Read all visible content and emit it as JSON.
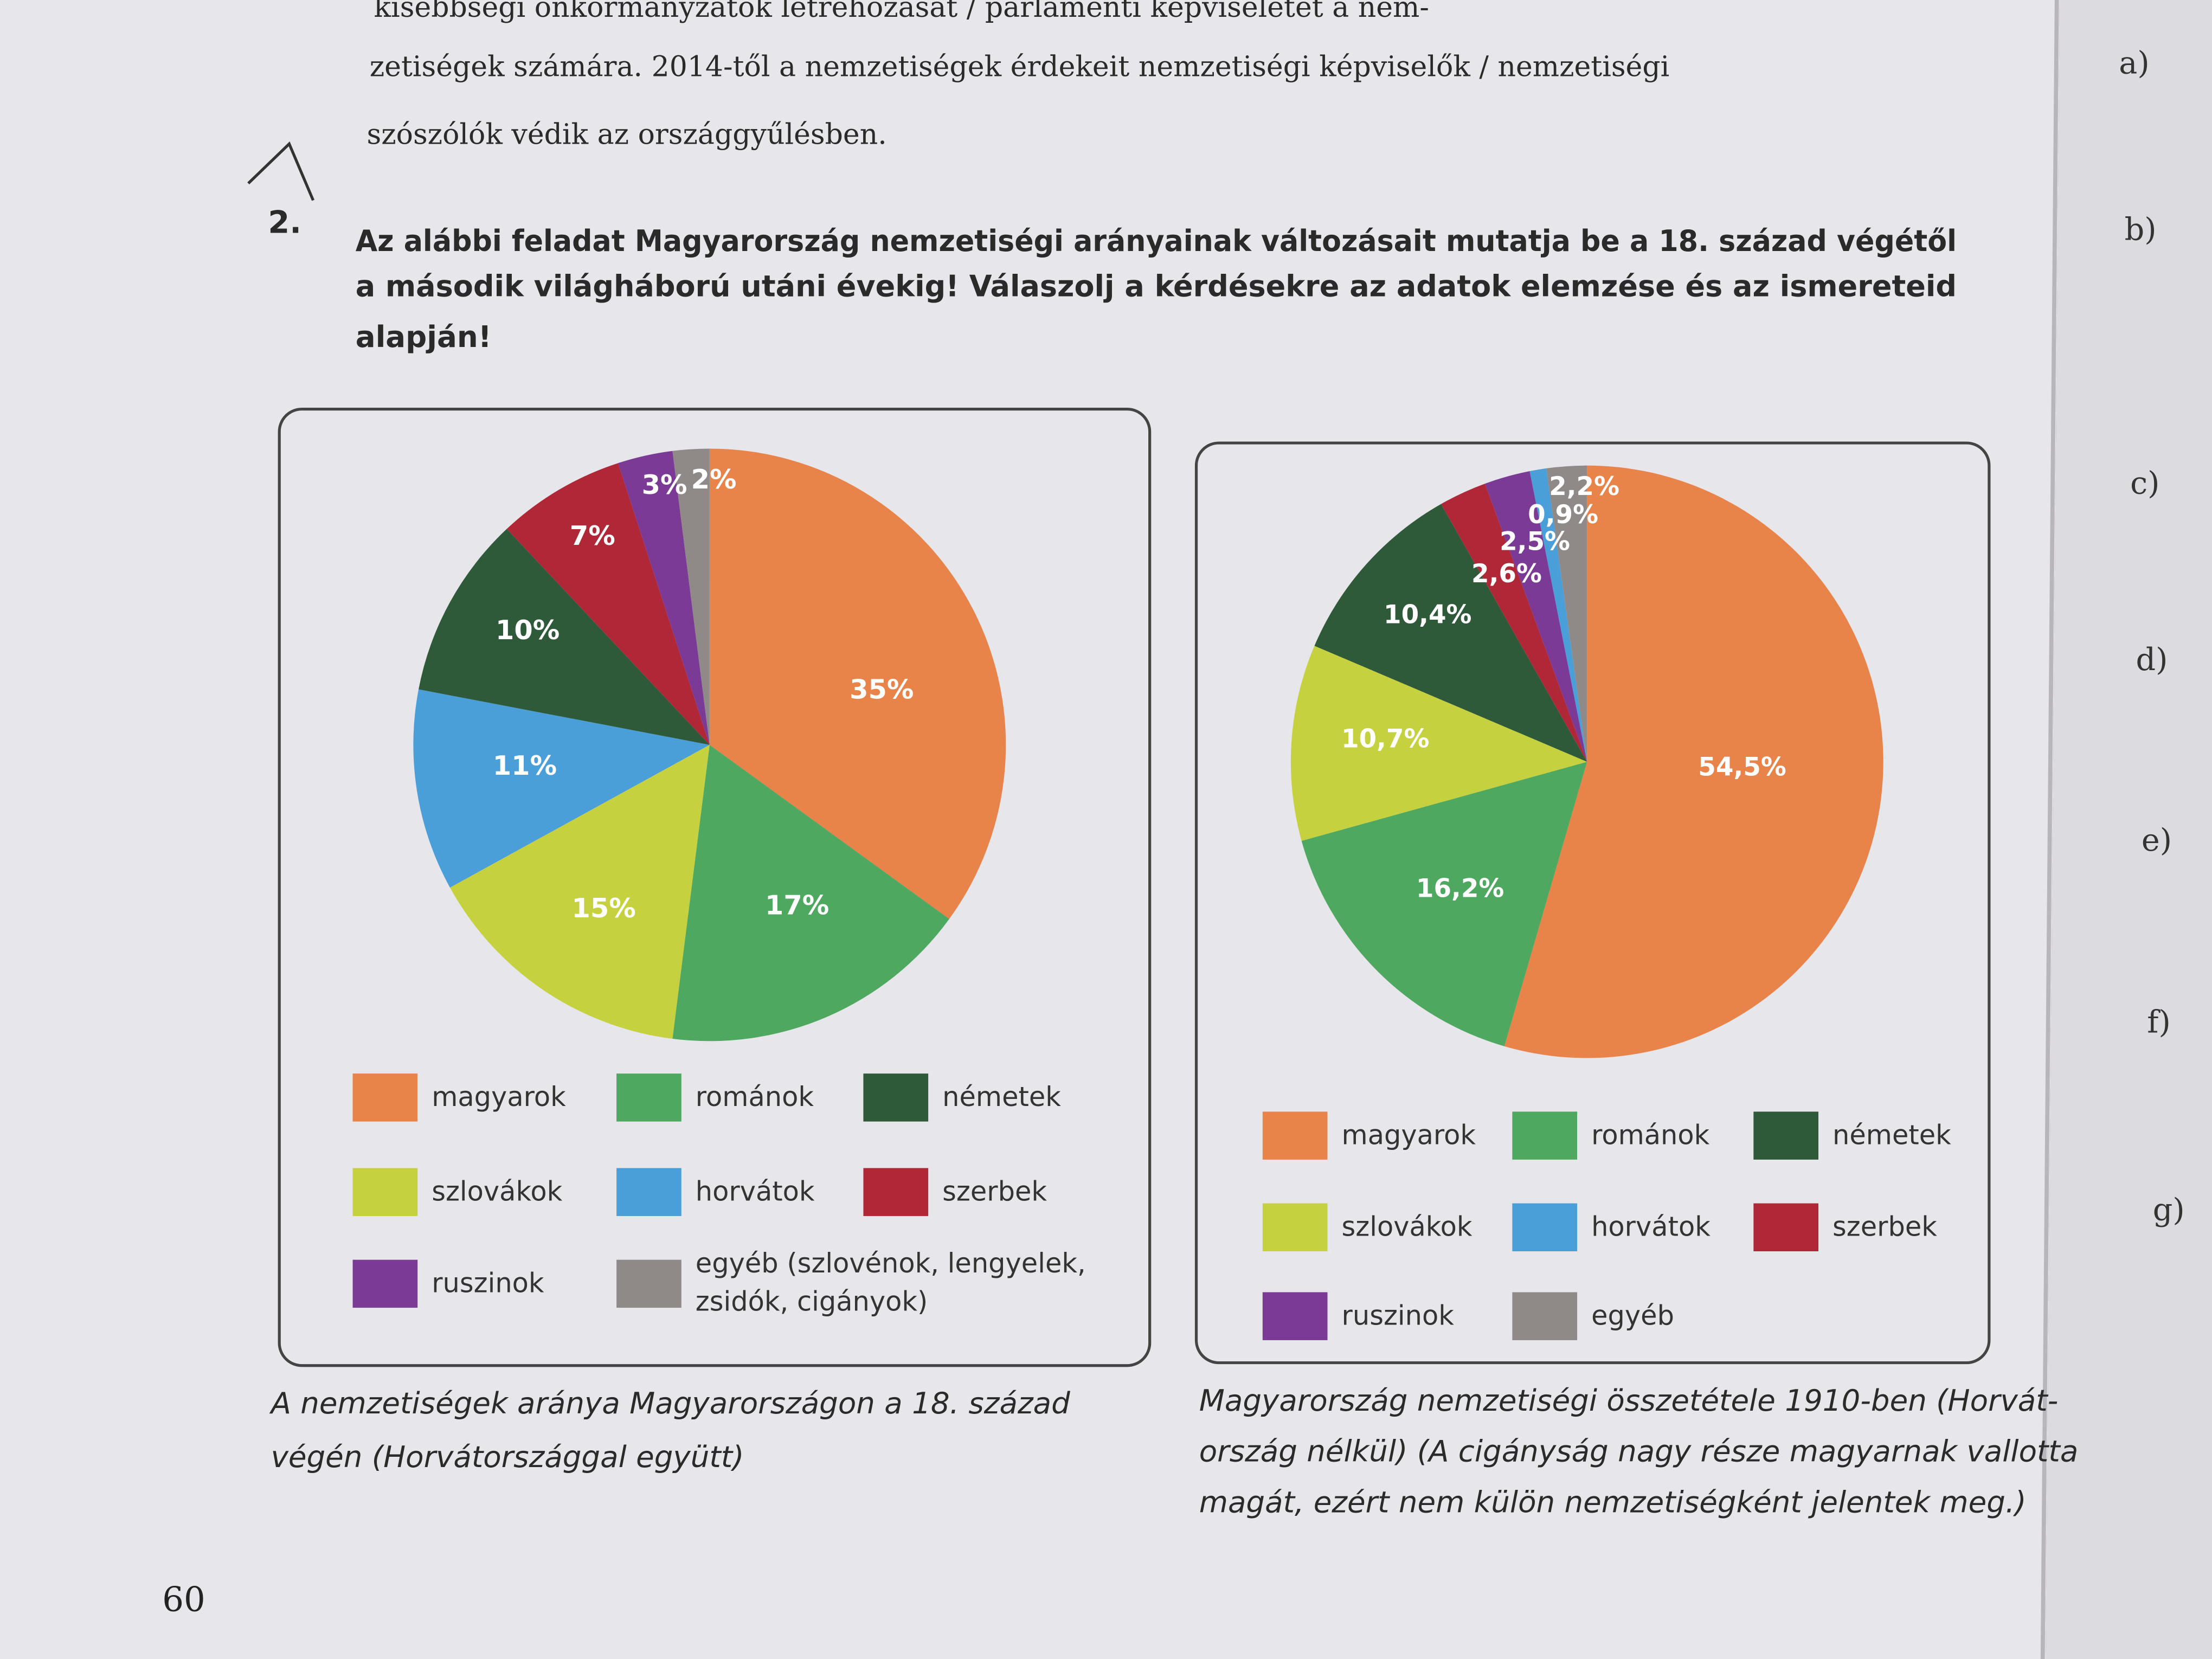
{
  "page": {
    "intro_lines": [
      "kisebbségi önkormányzatok létrehozását / parlamenti képviseletet a nem-",
      "zetiségek számára. 2014-től a nemzetiségek érdekeit nemzetiségi képviselők / nemzetiségi",
      "szószólók védik az országgyűlésben."
    ],
    "task_number": "2.",
    "task_lines": [
      "Az alábbi feladat Magyarország nemzetiségi arányainak változásait mutatja be a 18. század végétől",
      "a második világháború utáni évekig! Válaszolj a kérdésekre az adatok elemzése és az ismereteid",
      "alapján!"
    ],
    "margin_items": [
      "a)",
      "b)",
      "c)",
      "d)",
      "e)",
      "f)",
      "g)"
    ],
    "page_number": "60"
  },
  "chart_data": [
    {
      "type": "pie",
      "categories": [
        "magyarok",
        "románok",
        "szlovákok",
        "horvátok",
        "németek",
        "szerbek",
        "ruszinok",
        "egyéb (szlovénok, lengyelek, zsidók, cigányok)"
      ],
      "values": [
        35,
        17,
        15,
        11,
        10,
        7,
        3,
        2
      ],
      "value_labels": [
        "35%",
        "17%",
        "15%",
        "11%",
        "10%",
        "7%",
        "3%",
        "2%"
      ],
      "colors": [
        "#e8834a",
        "#4fa860",
        "#c5d13f",
        "#4a9fd8",
        "#2f5a3a",
        "#b02838",
        "#7b3a95",
        "#8f8a88"
      ],
      "caption": [
        "A nemzetiségek aránya Magyarországon a 18. század",
        "végén (Horvátországgal együtt)"
      ]
    },
    {
      "type": "pie",
      "categories": [
        "magyarok",
        "románok",
        "szlovákok",
        "németek",
        "szerbek",
        "ruszinok",
        "horvátok",
        "egyéb"
      ],
      "values": [
        54.5,
        16.2,
        10.7,
        10.4,
        2.6,
        2.5,
        0.9,
        2.2
      ],
      "value_labels": [
        "54,5%",
        "16,2%",
        "10,7%",
        "10,4%",
        "2,6%",
        "2,5%",
        "0,9%",
        "2,2%"
      ],
      "colors": [
        "#e8834a",
        "#4fa860",
        "#c5d13f",
        "#2f5a3a",
        "#b02838",
        "#7b3a95",
        "#4a9fd8",
        "#8f8a88"
      ],
      "caption": [
        "Magyarország nemzetiségi összetétele 1910-ben (Horvát-",
        "ország nélkül) (A cigányság nagy része magyarnak vallotta",
        "magát, ezért nem külön nemzetiségként jelentek meg.)"
      ]
    }
  ]
}
